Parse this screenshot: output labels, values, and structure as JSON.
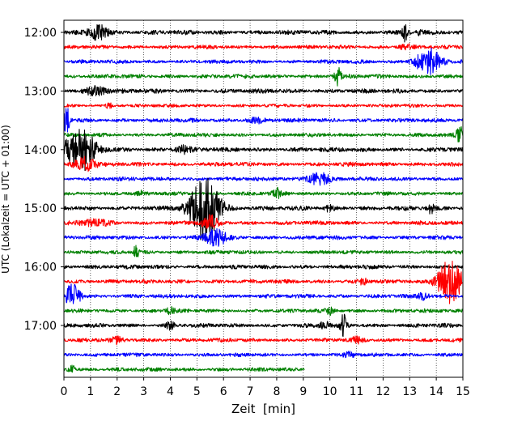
{
  "chart_data": {
    "type": "line",
    "title": "",
    "xlabel": "Zeit  [min]",
    "ylabel": "UTC (Lokalzeit = UTC + 01:00)",
    "xlim": [
      0,
      15
    ],
    "x_ticks": [
      0,
      1,
      2,
      3,
      4,
      5,
      6,
      7,
      8,
      9,
      10,
      11,
      12,
      13,
      14,
      15
    ],
    "x_tick_labels": [
      "0",
      "1",
      "2",
      "3",
      "4",
      "5",
      "6",
      "7",
      "8",
      "9",
      "10",
      "11",
      "12",
      "13",
      "14",
      "15"
    ],
    "y_tick_labels": [
      "12:00",
      "13:00",
      "14:00",
      "15:00",
      "16:00",
      "17:00"
    ],
    "grid": "vertical dotted at each minute",
    "colors": [
      "#000000",
      "#ff0000",
      "#0000ff",
      "#008000"
    ],
    "trace_interval_min": 15,
    "traces": [
      {
        "start": "12:00",
        "color": "#000000",
        "end_min": 15,
        "base_amp": 2.0,
        "events": [
          {
            "t": 1.3,
            "amp": 9,
            "w": 0.35
          },
          {
            "t": 12.8,
            "amp": 12,
            "w": 0.1
          },
          {
            "t": 13.4,
            "amp": 4,
            "w": 0.08
          }
        ]
      },
      {
        "start": "12:15",
        "color": "#ff0000",
        "end_min": 15,
        "base_amp": 1.7,
        "events": [
          {
            "t": 12.9,
            "amp": 3,
            "w": 0.3
          }
        ]
      },
      {
        "start": "12:30",
        "color": "#0000ff",
        "end_min": 15,
        "base_amp": 1.7,
        "events": [
          {
            "t": 13.7,
            "amp": 17,
            "w": 0.45
          }
        ]
      },
      {
        "start": "12:45",
        "color": "#008000",
        "end_min": 15,
        "base_amp": 1.8,
        "events": [
          {
            "t": 10.3,
            "amp": 10,
            "w": 0.12
          }
        ]
      },
      {
        "start": "13:00",
        "color": "#000000",
        "end_min": 15,
        "base_amp": 2.0,
        "events": [
          {
            "t": 1.2,
            "amp": 6,
            "w": 0.35
          }
        ]
      },
      {
        "start": "13:15",
        "color": "#ff0000",
        "end_min": 15,
        "base_amp": 1.5,
        "events": [
          {
            "t": 1.7,
            "amp": 4,
            "w": 0.1
          }
        ]
      },
      {
        "start": "13:30",
        "color": "#0000ff",
        "end_min": 15,
        "base_amp": 1.8,
        "events": [
          {
            "t": 0.1,
            "amp": 16,
            "w": 0.12
          },
          {
            "t": 7.2,
            "amp": 3,
            "w": 0.3
          }
        ]
      },
      {
        "start": "13:45",
        "color": "#008000",
        "end_min": 15,
        "base_amp": 1.7,
        "events": [
          {
            "t": 14.9,
            "amp": 9,
            "w": 0.15
          }
        ]
      },
      {
        "start": "14:00",
        "color": "#000000",
        "end_min": 15,
        "base_amp": 2.0,
        "events": [
          {
            "t": 0.6,
            "amp": 26,
            "w": 0.55
          },
          {
            "t": 4.5,
            "amp": 4,
            "w": 0.3
          }
        ]
      },
      {
        "start": "14:15",
        "color": "#ff0000",
        "end_min": 15,
        "base_amp": 1.8,
        "events": [
          {
            "t": 0.8,
            "amp": 8,
            "w": 0.4
          }
        ]
      },
      {
        "start": "14:30",
        "color": "#0000ff",
        "end_min": 15,
        "base_amp": 1.8,
        "events": [
          {
            "t": 9.6,
            "amp": 9,
            "w": 0.4
          }
        ]
      },
      {
        "start": "14:45",
        "color": "#008000",
        "end_min": 15,
        "base_amp": 1.7,
        "events": [
          {
            "t": 8.0,
            "amp": 6,
            "w": 0.15
          },
          {
            "t": 2.9,
            "amp": 4,
            "w": 0.1
          }
        ]
      },
      {
        "start": "15:00",
        "color": "#000000",
        "end_min": 15,
        "base_amp": 2.0,
        "events": [
          {
            "t": 5.3,
            "amp": 40,
            "w": 0.55
          },
          {
            "t": 10.0,
            "amp": 4,
            "w": 0.15
          },
          {
            "t": 13.8,
            "amp": 6,
            "w": 0.1
          }
        ]
      },
      {
        "start": "15:15",
        "color": "#ff0000",
        "end_min": 15,
        "base_amp": 1.8,
        "events": [
          {
            "t": 1.2,
            "amp": 4,
            "w": 0.5
          },
          {
            "t": 5.5,
            "amp": 8,
            "w": 0.3
          }
        ]
      },
      {
        "start": "15:30",
        "color": "#0000ff",
        "end_min": 15,
        "base_amp": 1.8,
        "events": [
          {
            "t": 5.7,
            "amp": 10,
            "w": 0.4
          }
        ]
      },
      {
        "start": "15:45",
        "color": "#008000",
        "end_min": 15,
        "base_amp": 1.7,
        "events": [
          {
            "t": 2.7,
            "amp": 8,
            "w": 0.1
          }
        ]
      },
      {
        "start": "16:00",
        "color": "#000000",
        "end_min": 15,
        "base_amp": 1.8,
        "events": []
      },
      {
        "start": "16:15",
        "color": "#ff0000",
        "end_min": 15,
        "base_amp": 1.8,
        "events": [
          {
            "t": 14.5,
            "amp": 26,
            "w": 0.45
          },
          {
            "t": 11.3,
            "amp": 4,
            "w": 0.2
          }
        ]
      },
      {
        "start": "16:30",
        "color": "#0000ff",
        "end_min": 15,
        "base_amp": 1.8,
        "events": [
          {
            "t": 0.3,
            "amp": 15,
            "w": 0.3
          },
          {
            "t": 13.5,
            "amp": 4,
            "w": 0.2
          }
        ]
      },
      {
        "start": "16:45",
        "color": "#008000",
        "end_min": 15,
        "base_amp": 1.7,
        "events": [
          {
            "t": 4.0,
            "amp": 5,
            "w": 0.15
          },
          {
            "t": 10.0,
            "amp": 4,
            "w": 0.15
          }
        ]
      },
      {
        "start": "17:00",
        "color": "#000000",
        "end_min": 15,
        "base_amp": 1.8,
        "events": [
          {
            "t": 10.5,
            "amp": 14,
            "w": 0.12
          },
          {
            "t": 4.0,
            "amp": 5,
            "w": 0.15
          },
          {
            "t": 9.8,
            "amp": 4,
            "w": 0.2
          }
        ]
      },
      {
        "start": "17:15",
        "color": "#ff0000",
        "end_min": 15,
        "base_amp": 1.8,
        "events": [
          {
            "t": 2.0,
            "amp": 3,
            "w": 0.2
          },
          {
            "t": 11.0,
            "amp": 3,
            "w": 0.2
          }
        ]
      },
      {
        "start": "17:30",
        "color": "#0000ff",
        "end_min": 15,
        "base_amp": 1.7,
        "events": [
          {
            "t": 10.7,
            "amp": 3,
            "w": 0.2
          }
        ]
      },
      {
        "start": "17:45",
        "color": "#008000",
        "end_min": 9.05,
        "base_amp": 1.7,
        "events": [
          {
            "t": 0.3,
            "amp": 4,
            "w": 0.15
          }
        ]
      }
    ]
  }
}
